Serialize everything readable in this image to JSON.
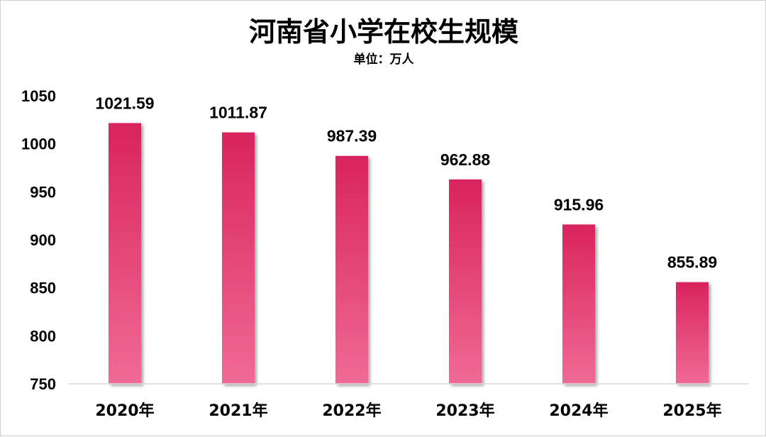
{
  "chart_data": {
    "type": "bar",
    "title": "河南省小学在校生规模",
    "subtitle": "单位：万人",
    "categories": [
      "2020年",
      "2021年",
      "2022年",
      "2023年",
      "2024年",
      "2025年"
    ],
    "values": [
      1021.59,
      1011.87,
      987.39,
      962.88,
      915.96,
      855.89
    ],
    "data_labels": [
      "1021.59",
      "1011.87",
      "987.39",
      "962.88",
      "915.96",
      "855.89"
    ],
    "ylim": [
      750,
      1050
    ],
    "yticks": [
      750,
      800,
      850,
      900,
      950,
      1000,
      1050
    ],
    "grid": false,
    "legend": "none",
    "bar_color_top": "#d9245e",
    "bar_color_bottom": "#f06a96"
  }
}
